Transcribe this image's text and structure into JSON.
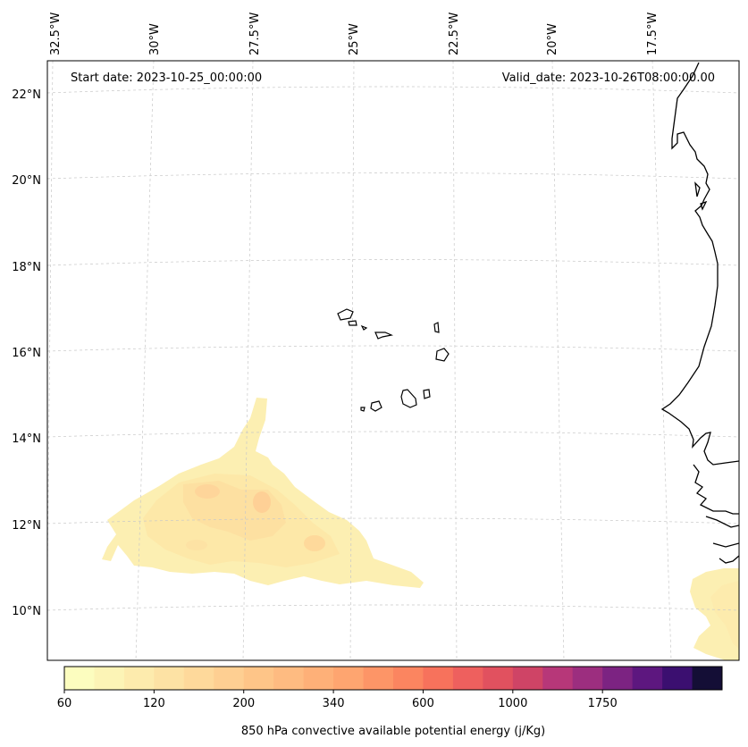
{
  "header": {
    "start_date": "Start date: 2023-10-25_00:00:00",
    "valid_date": "Valid_date: 2023-10-26T08:00:00.00"
  },
  "axes": {
    "lon_labels": [
      "32.5°W",
      "30°W",
      "27.5°W",
      "25°W",
      "22.5°W",
      "20°W",
      "17.5°W"
    ],
    "lat_labels": [
      "22°N",
      "20°N",
      "18°N",
      "16°N",
      "14°N",
      "12°N",
      "10°N"
    ]
  },
  "colorbar": {
    "title": "850 hPa convective available potential energy (j/Kg)",
    "tick_labels": [
      "60",
      "120",
      "200",
      "340",
      "600",
      "1000",
      "1750"
    ],
    "colors": [
      "#fcfdbf",
      "#fcf4b6",
      "#fdebad",
      "#fde2a4",
      "#fed99b",
      "#fecf92",
      "#fec588",
      "#febb81",
      "#feb078",
      "#fea570",
      "#fd9567",
      "#fb8560",
      "#f7725c",
      "#ee605e",
      "#e1515f",
      "#cf4466",
      "#b73779",
      "#9c2e7f",
      "#7c2382",
      "#5d177f",
      "#3b0f70",
      "#140e36"
    ]
  },
  "chart_data": {
    "type": "contour-map",
    "title": "850 hPa convective available potential energy (j/Kg)",
    "lon_range": [
      "32.5°W",
      "16°W"
    ],
    "lat_range": [
      "9°N",
      "22.5°N"
    ],
    "colorbar_levels": [
      60,
      120,
      200,
      340,
      600,
      1000,
      1750
    ],
    "regions": [
      {
        "name": "cape-area-southwest",
        "value_range": [
          60,
          200
        ]
      },
      {
        "name": "cape-area-southeast-coast",
        "value_range": [
          60,
          120
        ]
      }
    ],
    "grid": true
  }
}
